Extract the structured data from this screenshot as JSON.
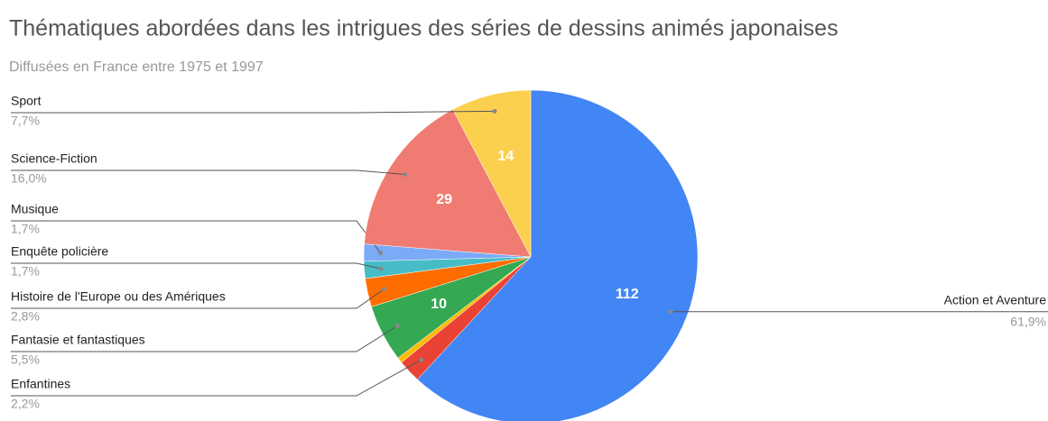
{
  "chart_data": {
    "type": "pie",
    "title": "Thématiques abordées dans les intrigues des séries de dessins animés japonaises",
    "subtitle": "Diffusées en France entre 1975 et 1997",
    "categories": [
      "Action et Aventure",
      "Enfantines",
      null,
      "Fantasie et fantastiques",
      "Histoire de l'Europe ou des Amériques",
      "Enquête policière",
      "Musique",
      "Science-Fiction",
      "Sport"
    ],
    "values": [
      112,
      4,
      1,
      10,
      5,
      3,
      3,
      29,
      14
    ],
    "percents": [
      61.9,
      2.2,
      null,
      5.5,
      2.8,
      1.7,
      1.7,
      16.0,
      7.7
    ],
    "percent_labels": [
      "61,9%",
      "2,2%",
      null,
      "5,5%",
      "2,8%",
      "1,7%",
      "1,7%",
      "16,0%",
      "7,7%"
    ],
    "colors": [
      "#4285f4",
      "#ea4335",
      "#fbbc04",
      "#34a853",
      "#ff6d01",
      "#46bdc6",
      "#7baaf7",
      "#f07b72",
      "#fcd04f"
    ]
  }
}
